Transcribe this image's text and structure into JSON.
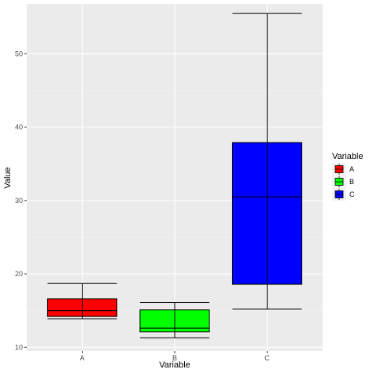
{
  "chart_data": {
    "type": "box",
    "xlabel": "Variable",
    "ylabel": "Value",
    "categories": [
      "A",
      "B",
      "C"
    ],
    "ylim": [
      9.5,
      56.8
    ],
    "yticks": [
      10,
      20,
      30,
      40,
      50
    ],
    "grid": true,
    "legend": {
      "title": "Variable",
      "position": "right",
      "entries": [
        "A",
        "B",
        "C"
      ]
    },
    "colors": [
      "#ff0000",
      "#00ff00",
      "#0000ff"
    ],
    "boxes": [
      {
        "category": "A",
        "min": 13.9,
        "q1": 14.2,
        "median": 15.0,
        "q3": 16.6,
        "max": 18.7
      },
      {
        "category": "B",
        "min": 11.3,
        "q1": 12.1,
        "median": 12.6,
        "q3": 15.1,
        "max": 16.1
      },
      {
        "category": "C",
        "min": 15.2,
        "q1": 18.6,
        "median": 30.5,
        "q3": 37.9,
        "max": 55.5
      }
    ]
  }
}
